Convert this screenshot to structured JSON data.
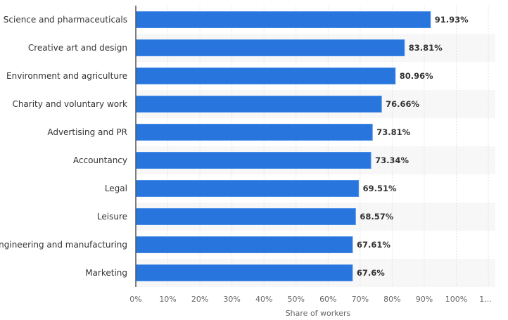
{
  "chart_data": {
    "type": "bar",
    "orientation": "horizontal",
    "categories": [
      "Science and pharmaceuticals",
      "Creative art and design",
      "Environment and agriculture",
      "Charity and voluntary work",
      "Advertising and PR",
      "Accountancy",
      "Legal",
      "Leisure",
      "Engineering and manufacturing",
      "Marketing"
    ],
    "values": [
      91.93,
      83.81,
      80.96,
      76.66,
      73.81,
      73.34,
      69.51,
      68.57,
      67.61,
      67.6
    ],
    "value_labels": [
      "91.93%",
      "83.81%",
      "80.96%",
      "76.66%",
      "73.81%",
      "73.34%",
      "69.51%",
      "68.57%",
      "67.61%",
      "67.6%"
    ],
    "xlabel": "Share of workers",
    "ylabel": "",
    "xlim": [
      0,
      110
    ],
    "ticks": [
      "0%",
      "10%",
      "20%",
      "30%",
      "40%",
      "50%",
      "60%",
      "70%",
      "80%",
      "90%",
      "100%",
      "1..."
    ],
    "grid": true,
    "bar_color": "#2876dd",
    "stripe_color": "#f7f7f7"
  }
}
